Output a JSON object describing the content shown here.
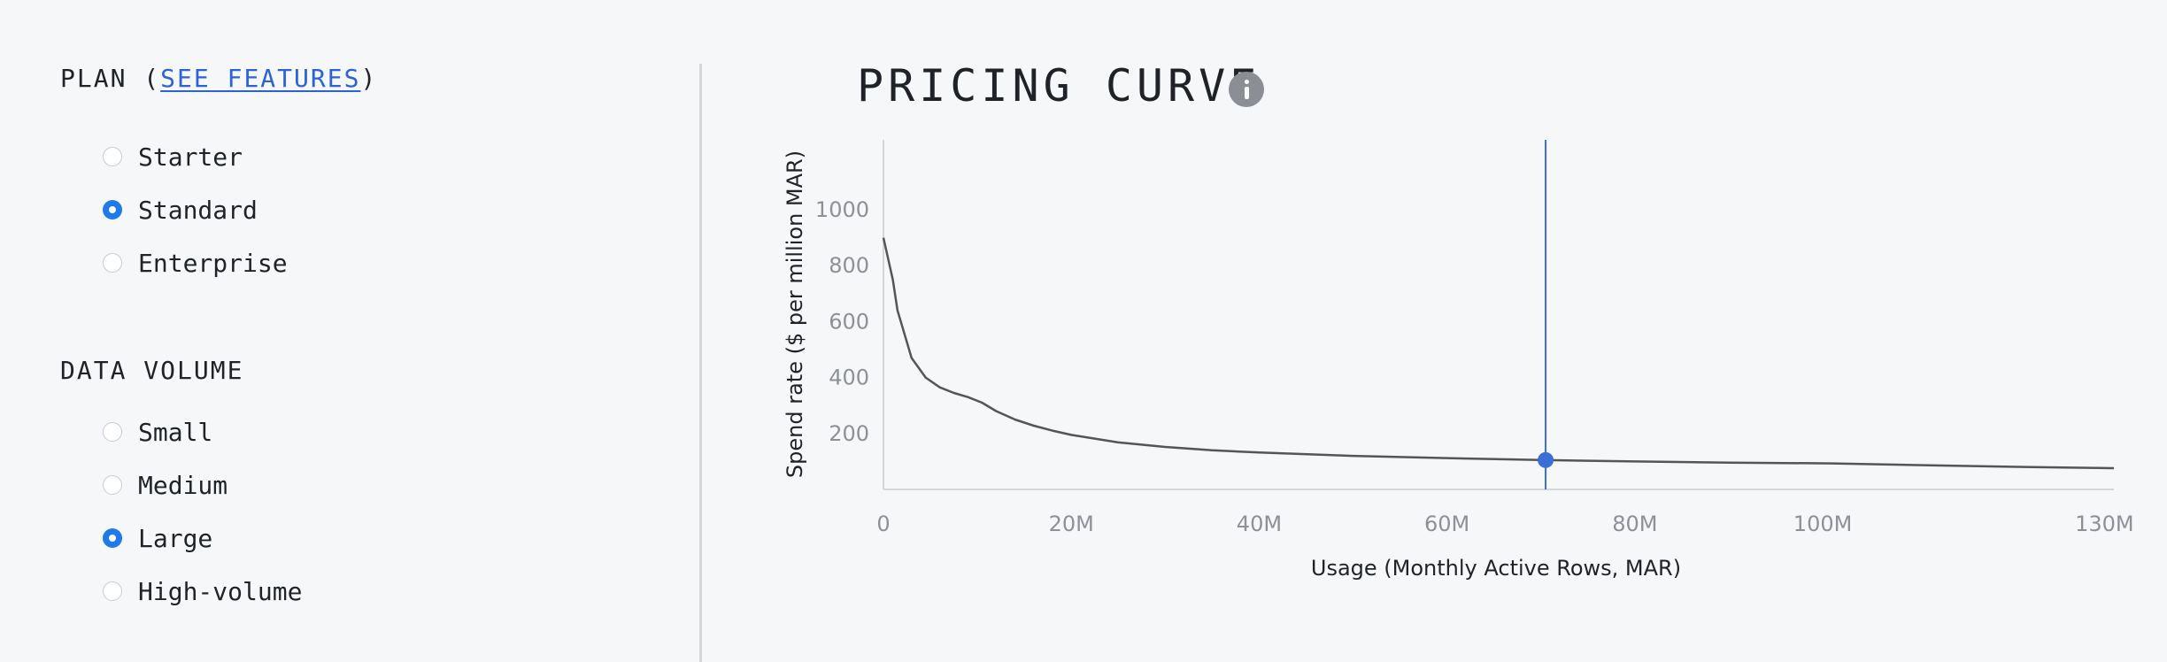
{
  "plan": {
    "title_prefix": "PLAN (",
    "see_features_link": "SEE FEATURES",
    "title_suffix": ")",
    "options": [
      {
        "label": "Starter",
        "selected": false
      },
      {
        "label": "Standard",
        "selected": true
      },
      {
        "label": "Enterprise",
        "selected": false
      }
    ]
  },
  "data_volume": {
    "title": "DATA VOLUME",
    "options": [
      {
        "label": "Small",
        "selected": false
      },
      {
        "label": "Medium",
        "selected": false
      },
      {
        "label": "Large",
        "selected": true
      },
      {
        "label": "High-volume",
        "selected": false
      }
    ]
  },
  "colors": {
    "accent": "#1f7aec",
    "link": "#2c62d8",
    "curve": "#555555",
    "marker_line": "#3a6fd8",
    "tick_text": "#8d9096"
  },
  "chart_data": {
    "type": "line",
    "title": "PRICING CURVE",
    "xlabel": "Usage (Monthly Active Rows, MAR)",
    "ylabel": "Spend rate ($ per million MAR)",
    "xlim": [
      0,
      131
    ],
    "ylim": [
      0,
      1250
    ],
    "x_ticks": [
      0,
      20,
      40,
      60,
      80,
      100,
      130
    ],
    "x_tick_labels": [
      "0",
      "20M",
      "40M",
      "60M",
      "80M",
      "100M",
      "130M"
    ],
    "y_ticks": [
      200,
      400,
      600,
      800,
      1000
    ],
    "y_tick_labels": [
      "200",
      "400",
      "600",
      "800",
      "1000"
    ],
    "grid": false,
    "series": [
      {
        "x": [
          0,
          1,
          1.5,
          3,
          4.5,
          6,
          7.5,
          9,
          10.5,
          12,
          14,
          16,
          18,
          20,
          25,
          30,
          35,
          40,
          50,
          60,
          70,
          80,
          90,
          101,
          110,
          120,
          131
        ],
        "y": [
          900,
          750,
          640,
          470,
          400,
          365,
          345,
          330,
          310,
          280,
          250,
          228,
          210,
          195,
          168,
          152,
          140,
          132,
          120,
          112,
          105,
          100,
          96,
          93,
          87,
          81,
          76
        ]
      }
    ],
    "selected_point": {
      "x": 70.5,
      "y": 105
    }
  }
}
